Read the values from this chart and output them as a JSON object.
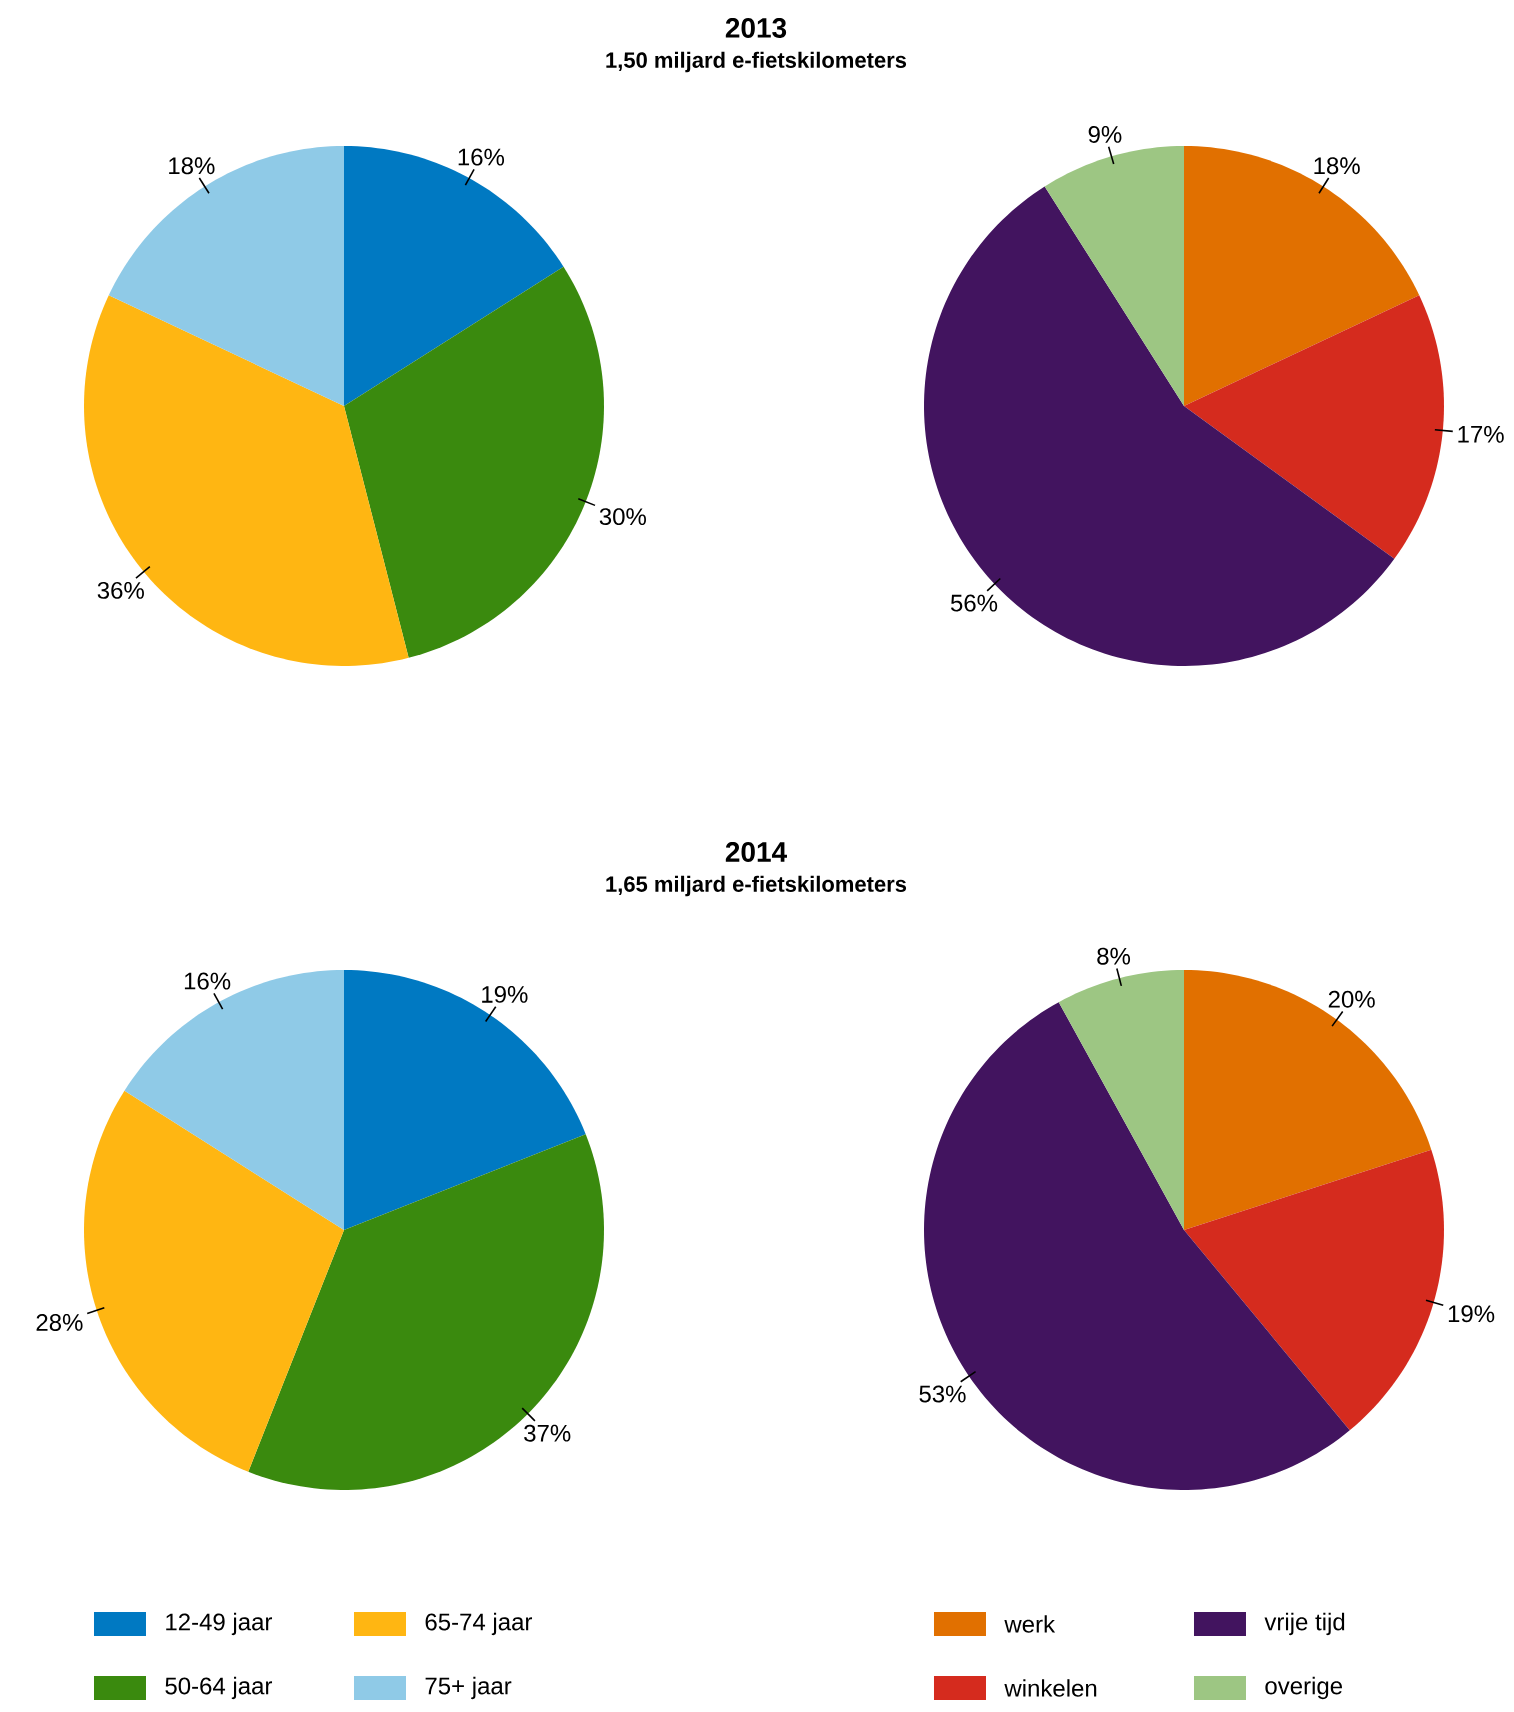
{
  "chart_data": [
    {
      "type": "pie",
      "title": "2013",
      "subtitle": "1,50 miljard e-fietskilometers",
      "categories": [
        null,
        null,
        null,
        null
      ],
      "values": [
        16,
        30,
        36,
        18
      ],
      "colors": [
        "#0079c2",
        "#3a8a0e",
        "#ffb612",
        "#8fcae7"
      ],
      "value_labels": [
        "16%",
        "30%",
        "36%",
        "18%"
      ]
    },
    {
      "type": "pie",
      "categories": [
        null,
        null,
        null,
        null
      ],
      "values": [
        18,
        17,
        56,
        9
      ],
      "colors": [
        "#e17000",
        "#d52b1e",
        "#42145f",
        "#9dc683"
      ],
      "value_labels": [
        "18%",
        "17%",
        "56%",
        "9%"
      ]
    },
    {
      "type": "pie",
      "title": "2014",
      "subtitle": "1,65 miljard e-fietskilometers",
      "categories": [
        "12-49 jaar",
        "50-64 jaar",
        "65-74 jaar",
        "75+ jaar"
      ],
      "values": [
        19,
        37,
        28,
        16
      ],
      "colors": [
        "#0079c2",
        "#3a8a0e",
        "#ffb612",
        "#8fcae7"
      ],
      "value_labels": [
        "19%",
        "37%",
        "28%",
        "16%"
      ],
      "legend": "bottom"
    },
    {
      "type": "pie",
      "categories": [
        "werk",
        "winkelen",
        "vrije tijd",
        "overige"
      ],
      "values": [
        20,
        19,
        53,
        8
      ],
      "colors": [
        "#e17000",
        "#d52b1e",
        "#42145f",
        "#9dc683"
      ],
      "value_labels": [
        "20%",
        "19%",
        "53%",
        "8%"
      ],
      "legend": "bottom"
    }
  ]
}
